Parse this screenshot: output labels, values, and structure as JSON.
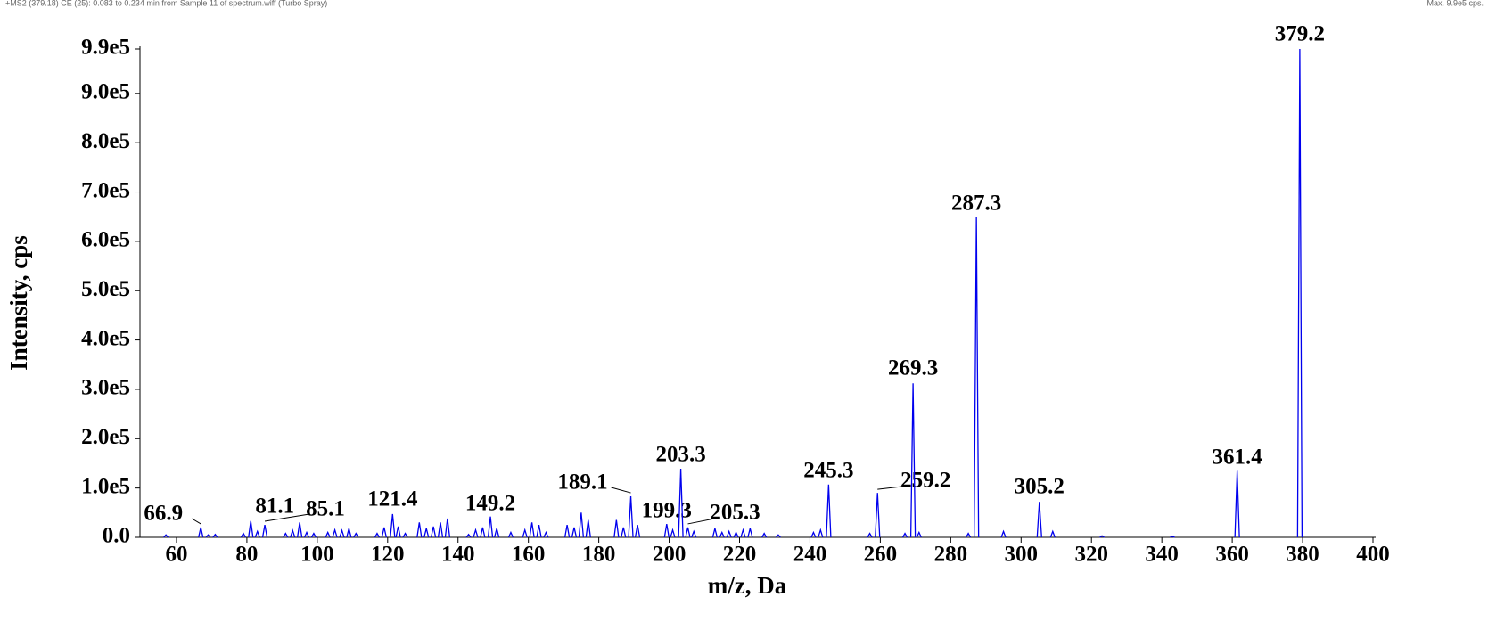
{
  "chart_data": {
    "type": "spectrum",
    "subtitle": "+MS2 (379.18) CE (25): 0.083 to 0.234 min from Sample 11 of spectrum.wiff (Turbo Spray)",
    "max_label": "Max. 9.9e5 cps.",
    "x_label": "m/z, Da",
    "y_label": "Intensity, cps",
    "color": "#0000ee",
    "xlim": [
      50,
      400
    ],
    "xticks": [
      60,
      80,
      100,
      120,
      140,
      160,
      180,
      200,
      220,
      240,
      260,
      280,
      300,
      320,
      340,
      360,
      380,
      400
    ],
    "ylim": [
      0,
      990000
    ],
    "yticks": [
      {
        "value": 0,
        "label": "0.0"
      },
      {
        "value": 100000,
        "label": "1.0e5"
      },
      {
        "value": 200000,
        "label": "2.0e5"
      },
      {
        "value": 300000,
        "label": "3.0e5"
      },
      {
        "value": 400000,
        "label": "4.0e5"
      },
      {
        "value": 500000,
        "label": "5.0e5"
      },
      {
        "value": 600000,
        "label": "6.0e5"
      },
      {
        "value": 700000,
        "label": "7.0e5"
      },
      {
        "value": 800000,
        "label": "8.0e5"
      },
      {
        "value": 900000,
        "label": "9.0e5"
      },
      {
        "value": 990000,
        "label": "9.9e5"
      }
    ],
    "x": [
      57,
      66.9,
      69,
      71,
      79,
      81.1,
      83,
      85.1,
      91,
      93,
      95,
      97,
      99,
      103,
      105,
      107,
      109,
      111,
      117,
      119,
      121.4,
      123,
      125,
      129,
      131,
      133,
      135,
      137,
      143,
      145,
      147,
      149.2,
      151,
      155,
      159,
      161,
      163,
      165,
      171,
      173,
      175,
      177,
      185,
      187,
      189.1,
      191,
      199.3,
      201,
      203.3,
      205.3,
      207,
      213,
      215,
      217,
      219,
      221,
      223,
      227,
      231,
      241,
      243,
      245.3,
      257,
      259.2,
      267,
      269.3,
      271,
      285,
      287.3,
      295,
      305.2,
      309,
      323,
      343,
      361.4,
      379.2
    ],
    "values": [
      5000,
      20000,
      5000,
      6000,
      8000,
      33000,
      12000,
      25000,
      8000,
      14000,
      30000,
      10000,
      8000,
      10000,
      15000,
      14000,
      18000,
      8000,
      8000,
      20000,
      47000,
      22000,
      8000,
      30000,
      18000,
      22000,
      30000,
      38000,
      6000,
      15000,
      20000,
      42000,
      18000,
      10000,
      15000,
      30000,
      25000,
      10000,
      25000,
      20000,
      50000,
      35000,
      35000,
      20000,
      83000,
      25000,
      27000,
      15000,
      139000,
      20000,
      12000,
      18000,
      10000,
      12000,
      10000,
      15000,
      18000,
      8000,
      5000,
      10000,
      15000,
      107000,
      8000,
      90000,
      8000,
      312000,
      10000,
      8000,
      650000,
      12000,
      72000,
      12000,
      3000,
      2000,
      135000,
      990000
    ],
    "labels": [
      null,
      "66.9",
      null,
      null,
      null,
      "81.1",
      null,
      "85.1",
      null,
      null,
      null,
      null,
      null,
      null,
      null,
      null,
      null,
      null,
      null,
      null,
      "121.4",
      null,
      null,
      null,
      null,
      null,
      null,
      null,
      null,
      null,
      null,
      "149.2",
      null,
      null,
      null,
      null,
      null,
      null,
      null,
      null,
      null,
      null,
      null,
      null,
      "189.1",
      null,
      "199.3",
      null,
      "203.3",
      "205.3",
      null,
      null,
      null,
      null,
      null,
      null,
      null,
      null,
      null,
      null,
      null,
      "245.3",
      null,
      "259.2",
      null,
      "269.3",
      null,
      null,
      "287.3",
      null,
      "305.2",
      null,
      null,
      null,
      "361.4",
      "379.2"
    ]
  }
}
